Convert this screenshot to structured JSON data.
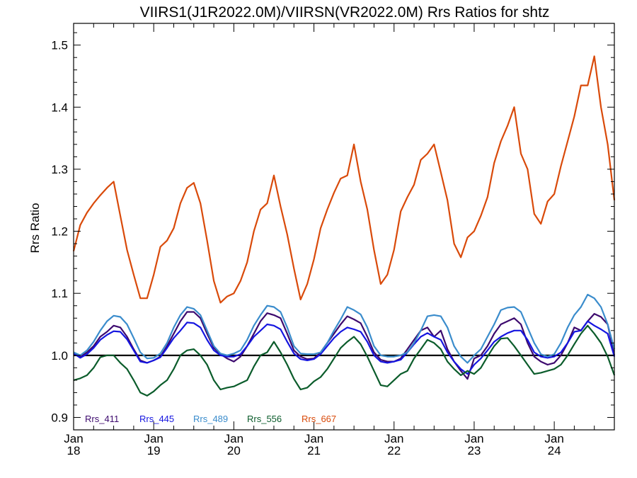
{
  "chart_data": {
    "type": "line",
    "title": "VIIRS1(J1R2022.0M)/VIIRSN(VR2022.0M)  Rrs Ratios for shtz",
    "ylabel": "Rrs Ratio",
    "xlabel": "",
    "ylim": [
      0.88,
      1.535
    ],
    "xlim": [
      "2018-01",
      "2024-10"
    ],
    "yticks": [
      "0.9",
      "1.0",
      "1.1",
      "1.2",
      "1.3",
      "1.4",
      "1.5"
    ],
    "xticks": [
      {
        "month": "Jan",
        "year": "18"
      },
      {
        "month": "Jan",
        "year": "19"
      },
      {
        "month": "Jan",
        "year": "20"
      },
      {
        "month": "Jan",
        "year": "21"
      },
      {
        "month": "Jan",
        "year": "22"
      },
      {
        "month": "Jan",
        "year": "23"
      },
      {
        "month": "Jan",
        "year": "24"
      }
    ],
    "reference_line": 1.0,
    "legend_position": "bottom-left",
    "x": [
      "2018-01",
      "2018-02",
      "2018-03",
      "2018-04",
      "2018-05",
      "2018-06",
      "2018-07",
      "2018-08",
      "2018-09",
      "2018-10",
      "2018-11",
      "2018-12",
      "2019-01",
      "2019-02",
      "2019-03",
      "2019-04",
      "2019-05",
      "2019-06",
      "2019-07",
      "2019-08",
      "2019-09",
      "2019-10",
      "2019-11",
      "2019-12",
      "2020-01",
      "2020-02",
      "2020-03",
      "2020-04",
      "2020-05",
      "2020-06",
      "2020-07",
      "2020-08",
      "2020-09",
      "2020-10",
      "2020-11",
      "2020-12",
      "2021-01",
      "2021-02",
      "2021-03",
      "2021-04",
      "2021-05",
      "2021-06",
      "2021-07",
      "2021-08",
      "2021-09",
      "2021-10",
      "2021-11",
      "2021-12",
      "2022-01",
      "2022-02",
      "2022-03",
      "2022-04",
      "2022-05",
      "2022-06",
      "2022-07",
      "2022-08",
      "2022-09",
      "2022-10",
      "2022-11",
      "2022-12",
      "2023-01",
      "2023-02",
      "2023-03",
      "2023-04",
      "2023-05",
      "2023-06",
      "2023-07",
      "2023-08",
      "2023-09",
      "2023-10",
      "2023-11",
      "2023-12",
      "2024-01",
      "2024-02",
      "2024-03",
      "2024-04",
      "2024-05",
      "2024-06",
      "2024-07",
      "2024-08",
      "2024-09",
      "2024-10"
    ],
    "series": [
      {
        "name": "Rrs_411",
        "color": "#3d0a6e",
        "values": [
          1.005,
          0.998,
          1.005,
          1.015,
          1.03,
          1.038,
          1.048,
          1.045,
          1.03,
          1.01,
          0.992,
          0.988,
          0.992,
          0.998,
          1.015,
          1.035,
          1.055,
          1.07,
          1.07,
          1.06,
          1.035,
          1.012,
          1.002,
          0.995,
          0.99,
          0.998,
          1.015,
          1.035,
          1.055,
          1.068,
          1.065,
          1.06,
          1.035,
          1.008,
          0.998,
          0.994,
          0.995,
          1.005,
          1.02,
          1.035,
          1.05,
          1.063,
          1.058,
          1.052,
          1.03,
          1.005,
          0.993,
          0.99,
          0.99,
          0.995,
          1.01,
          1.025,
          1.04,
          1.045,
          1.03,
          1.04,
          1.01,
          0.99,
          0.975,
          0.962,
          0.995,
          1.0,
          1.015,
          1.035,
          1.05,
          1.055,
          1.06,
          1.05,
          1.02,
          0.998,
          0.99,
          0.985,
          0.988,
          1.0,
          1.02,
          1.045,
          1.04,
          1.055,
          1.067,
          1.062,
          1.05,
          1.0
        ]
      },
      {
        "name": "Rrs_445",
        "color": "#1515e0",
        "values": [
          1.003,
          0.996,
          1.002,
          1.012,
          1.025,
          1.033,
          1.039,
          1.038,
          1.026,
          1.008,
          0.99,
          0.988,
          0.992,
          0.997,
          1.012,
          1.028,
          1.04,
          1.053,
          1.052,
          1.045,
          1.025,
          1.008,
          1.0,
          0.998,
          0.998,
          1.002,
          1.015,
          1.03,
          1.04,
          1.05,
          1.048,
          1.042,
          1.022,
          1.003,
          0.994,
          0.992,
          0.994,
          1.002,
          1.015,
          1.028,
          1.038,
          1.045,
          1.042,
          1.038,
          1.022,
          1.0,
          0.99,
          0.988,
          0.99,
          0.993,
          1.005,
          1.018,
          1.03,
          1.036,
          1.03,
          1.025,
          1.005,
          0.99,
          0.978,
          0.97,
          0.985,
          0.995,
          1.008,
          1.022,
          1.03,
          1.036,
          1.04,
          1.04,
          1.025,
          1.005,
          0.998,
          0.996,
          0.998,
          1.005,
          1.02,
          1.038,
          1.04,
          1.055,
          1.048,
          1.042,
          1.035,
          0.998
        ]
      },
      {
        "name": "Rrs_489",
        "color": "#3a8ccc",
        "values": [
          1.005,
          1.0,
          1.008,
          1.022,
          1.04,
          1.055,
          1.064,
          1.062,
          1.05,
          1.028,
          1.005,
          0.995,
          0.996,
          1.003,
          1.02,
          1.045,
          1.065,
          1.078,
          1.075,
          1.065,
          1.04,
          1.015,
          1.003,
          1.0,
          1.003,
          1.008,
          1.025,
          1.048,
          1.065,
          1.08,
          1.078,
          1.07,
          1.045,
          1.015,
          1.003,
          1.002,
          1.002,
          1.005,
          1.02,
          1.04,
          1.058,
          1.078,
          1.073,
          1.066,
          1.045,
          1.015,
          1.0,
          0.998,
          0.998,
          1.0,
          1.005,
          1.02,
          1.04,
          1.063,
          1.065,
          1.063,
          1.045,
          1.015,
          0.998,
          0.988,
          1.0,
          1.01,
          1.03,
          1.05,
          1.073,
          1.077,
          1.078,
          1.07,
          1.045,
          1.02,
          1.002,
          0.998,
          1.002,
          1.02,
          1.045,
          1.065,
          1.078,
          1.098,
          1.092,
          1.078,
          1.05,
          1.01
        ]
      },
      {
        "name": "Rrs_556",
        "color": "#0b5c2b",
        "values": [
          0.96,
          0.963,
          0.968,
          0.98,
          0.997,
          1.0,
          1.0,
          0.988,
          0.978,
          0.96,
          0.94,
          0.935,
          0.942,
          0.952,
          0.96,
          0.978,
          1.0,
          1.008,
          1.01,
          1.0,
          0.985,
          0.96,
          0.945,
          0.948,
          0.95,
          0.955,
          0.96,
          0.982,
          1.0,
          1.005,
          1.022,
          1.005,
          0.985,
          0.962,
          0.945,
          0.948,
          0.958,
          0.965,
          0.978,
          0.995,
          1.012,
          1.022,
          1.03,
          1.018,
          0.998,
          0.975,
          0.952,
          0.95,
          0.96,
          0.97,
          0.975,
          0.995,
          1.01,
          1.025,
          1.02,
          1.01,
          0.99,
          0.978,
          0.968,
          0.975,
          0.97,
          0.98,
          0.998,
          1.015,
          1.027,
          1.028,
          1.015,
          1.0,
          0.985,
          0.97,
          0.972,
          0.975,
          0.978,
          0.985,
          1.0,
          1.018,
          1.035,
          1.048,
          1.035,
          1.02,
          0.998,
          0.968
        ]
      },
      {
        "name": "Rrs_667",
        "color": "#d94a0a",
        "values": [
          1.168,
          1.21,
          1.23,
          1.245,
          1.258,
          1.27,
          1.28,
          1.225,
          1.17,
          1.13,
          1.092,
          1.092,
          1.13,
          1.175,
          1.185,
          1.205,
          1.245,
          1.27,
          1.278,
          1.245,
          1.185,
          1.12,
          1.085,
          1.095,
          1.1,
          1.12,
          1.15,
          1.2,
          1.235,
          1.245,
          1.29,
          1.24,
          1.195,
          1.14,
          1.09,
          1.115,
          1.155,
          1.205,
          1.235,
          1.262,
          1.285,
          1.29,
          1.34,
          1.28,
          1.235,
          1.17,
          1.115,
          1.13,
          1.17,
          1.232,
          1.255,
          1.275,
          1.315,
          1.325,
          1.34,
          1.295,
          1.25,
          1.18,
          1.158,
          1.19,
          1.2,
          1.225,
          1.255,
          1.31,
          1.345,
          1.37,
          1.4,
          1.325,
          1.3,
          1.228,
          1.212,
          1.248,
          1.26,
          1.305,
          1.345,
          1.385,
          1.435,
          1.435,
          1.482,
          1.4,
          1.34,
          1.25
        ]
      }
    ]
  }
}
